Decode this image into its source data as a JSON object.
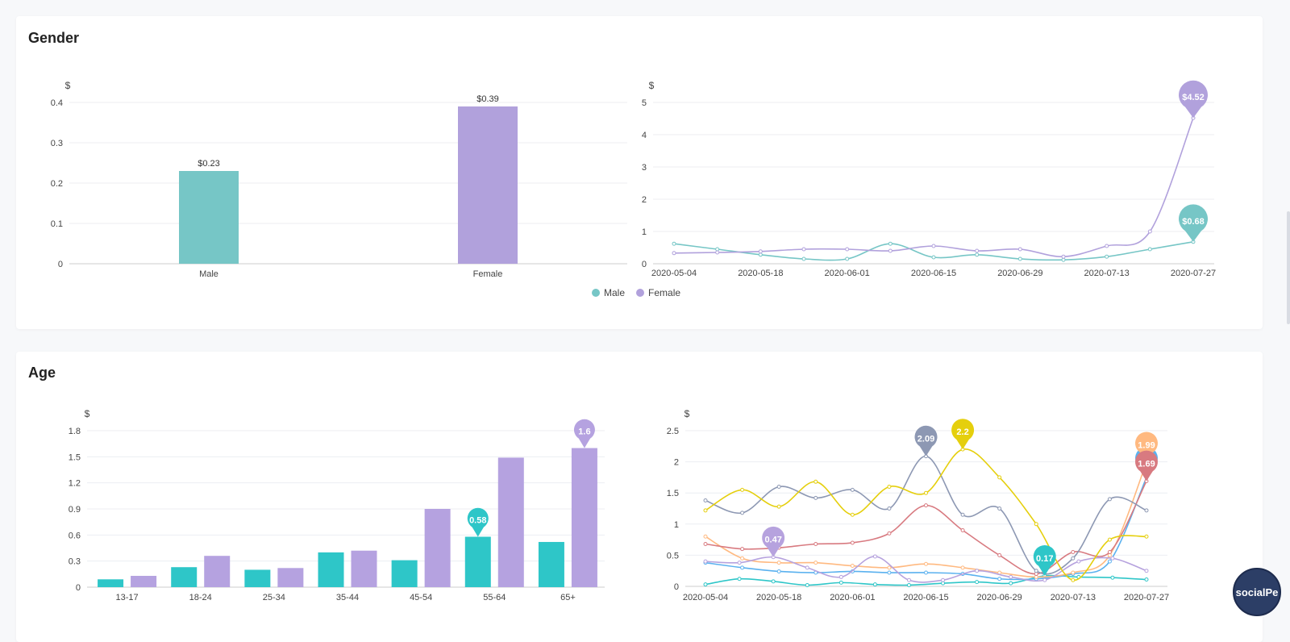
{
  "gender": {
    "title": "Gender",
    "legend": [
      {
        "name": "Male",
        "color": "#76c6c6"
      },
      {
        "name": "Female",
        "color": "#b1a1dc"
      }
    ]
  },
  "age": {
    "title": "Age"
  },
  "badge": {
    "label": "socialPe"
  },
  "chart_data": [
    {
      "id": "gender-bar",
      "type": "bar",
      "title": "",
      "ylabel": "$",
      "ylim": [
        0,
        0.4
      ],
      "yticks": [
        0,
        0.1,
        0.2,
        0.3,
        0.4
      ],
      "categories": [
        "Male",
        "Female"
      ],
      "values": [
        0.23,
        0.39
      ],
      "labels": [
        "$0.23",
        "$0.39"
      ],
      "colors": [
        "#76c6c6",
        "#b1a1dc"
      ]
    },
    {
      "id": "gender-line",
      "type": "line",
      "ylabel": "$",
      "ylim": [
        0,
        5
      ],
      "yticks": [
        0,
        1,
        2,
        3,
        4,
        5
      ],
      "xticks": [
        "2020-05-04",
        "2020-05-18",
        "2020-06-01",
        "2020-06-15",
        "2020-06-29",
        "2020-07-13",
        "2020-07-27"
      ],
      "series": [
        {
          "name": "Male",
          "color": "#76c6c6",
          "values": [
            0.62,
            0.45,
            0.28,
            0.15,
            0.15,
            0.62,
            0.2,
            0.28,
            0.15,
            0.12,
            0.22,
            0.45,
            0.68
          ],
          "pin": "$0.68"
        },
        {
          "name": "Female",
          "color": "#b1a1dc",
          "values": [
            0.33,
            0.35,
            0.38,
            0.45,
            0.45,
            0.4,
            0.55,
            0.4,
            0.45,
            0.22,
            0.55,
            1.0,
            4.52
          ],
          "pin": "$4.52"
        }
      ]
    },
    {
      "id": "age-bar",
      "type": "bar",
      "ylabel": "$",
      "ylim": [
        0,
        1.8
      ],
      "yticks": [
        0,
        0.3,
        0.6,
        0.9,
        1.2,
        1.5,
        1.8
      ],
      "categories": [
        "13-17",
        "18-24",
        "25-34",
        "35-44",
        "45-54",
        "55-64",
        "65+"
      ],
      "series": [
        {
          "name": "Male",
          "color": "#2ec6c8",
          "values": [
            0.09,
            0.23,
            0.2,
            0.4,
            0.31,
            0.58,
            0.52
          ],
          "pin_index": 5,
          "pin": "0.58"
        },
        {
          "name": "Female",
          "color": "#b5a2e0",
          "values": [
            0.13,
            0.36,
            0.22,
            0.42,
            0.9,
            1.49,
            1.6
          ],
          "pin_index": 6,
          "pin": "1.6"
        }
      ]
    },
    {
      "id": "age-line",
      "type": "line",
      "ylabel": "$",
      "ylim": [
        0,
        2.5
      ],
      "yticks": [
        0,
        0.5,
        1,
        1.5,
        2,
        2.5
      ],
      "xticks": [
        "2020-05-04",
        "2020-05-18",
        "2020-06-01",
        "2020-06-15",
        "2020-06-29",
        "2020-07-13",
        "2020-07-27"
      ],
      "series": [
        {
          "name": "13-17",
          "color": "#2ec6c8",
          "values": [
            0.03,
            0.12,
            0.08,
            0.02,
            0.06,
            0.03,
            0.02,
            0.05,
            0.07,
            0.05,
            0.17,
            0.15,
            0.14,
            0.11
          ],
          "pin_index": 10,
          "pin": "0.17"
        },
        {
          "name": "18-24",
          "color": "#5ab1ef",
          "values": [
            0.38,
            0.3,
            0.24,
            0.22,
            0.24,
            0.22,
            0.22,
            0.2,
            0.12,
            0.12,
            0.2,
            0.4,
            1.75
          ],
          "pin_index": 12,
          "pin": ""
        },
        {
          "name": "25-34",
          "color": "#ffb980",
          "values": [
            0.8,
            0.45,
            0.38,
            0.38,
            0.33,
            0.3,
            0.36,
            0.3,
            0.22,
            0.15,
            0.22,
            0.5,
            1.99
          ],
          "pin_index": 12,
          "pin": "1.99"
        },
        {
          "name": "35-44",
          "color": "#d87a80",
          "values": [
            0.68,
            0.6,
            0.62,
            0.68,
            0.7,
            0.85,
            1.3,
            0.9,
            0.5,
            0.2,
            0.55,
            0.55,
            1.69
          ],
          "pin_index": 12,
          "pin": "1.69"
        },
        {
          "name": "45-54",
          "color": "#b6a2de",
          "values": [
            0.4,
            0.38,
            0.47,
            0.3,
            0.15,
            0.48,
            0.1,
            0.1,
            0.25,
            0.15,
            0.1,
            0.4,
            0.45,
            0.25
          ],
          "pin_index": 2,
          "pin": "0.47"
        },
        {
          "name": "55-64",
          "color": "#8d98b3",
          "values": [
            1.38,
            1.18,
            1.6,
            1.42,
            1.55,
            1.25,
            2.09,
            1.15,
            1.25,
            0.25,
            0.45,
            1.4,
            1.22
          ],
          "pin_index": 6,
          "pin": "2.09"
        },
        {
          "name": "65+",
          "color": "#e5cf0d",
          "values": [
            1.22,
            1.55,
            1.28,
            1.68,
            1.15,
            1.6,
            1.5,
            2.2,
            1.75,
            1.0,
            0.1,
            0.75,
            0.8
          ],
          "pin_index": 7,
          "pin": "2.2"
        }
      ]
    }
  ]
}
